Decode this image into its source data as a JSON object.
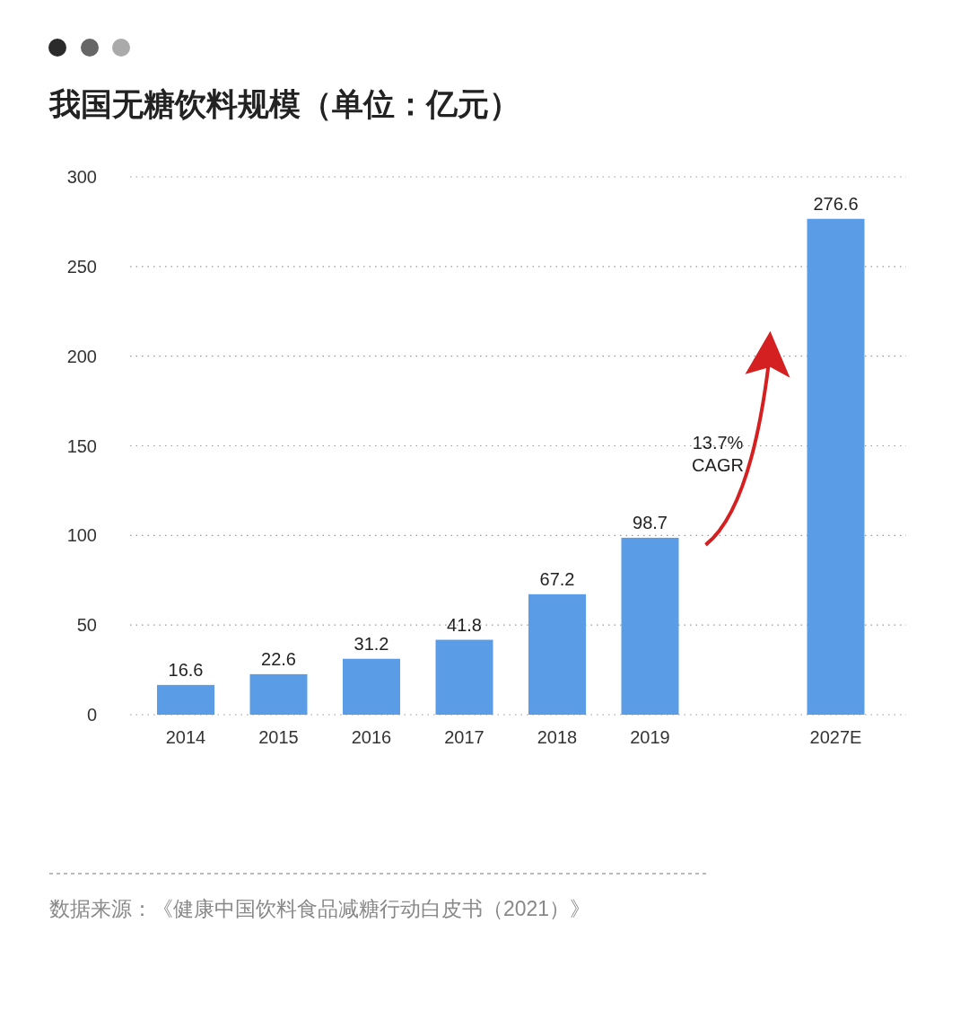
{
  "chart_data": {
    "type": "bar",
    "title": "我国无糖饮料规模（单位：亿元）",
    "categories": [
      "2014",
      "2015",
      "2016",
      "2017",
      "2018",
      "2019",
      null,
      "2027E"
    ],
    "values": [
      16.6,
      22.6,
      31.2,
      41.8,
      67.2,
      98.7,
      null,
      276.6
    ],
    "color": "#5a9de6",
    "ylim": [
      0,
      300
    ],
    "yticks": [
      0,
      50,
      100,
      150,
      200,
      250,
      300
    ],
    "grid": "y",
    "data_labels": true,
    "annotations": [
      "13.7%\nCAGR",
      "数据来源：《健康中国饮料食品减糖行动白皮书（2021）》"
    ]
  }
}
